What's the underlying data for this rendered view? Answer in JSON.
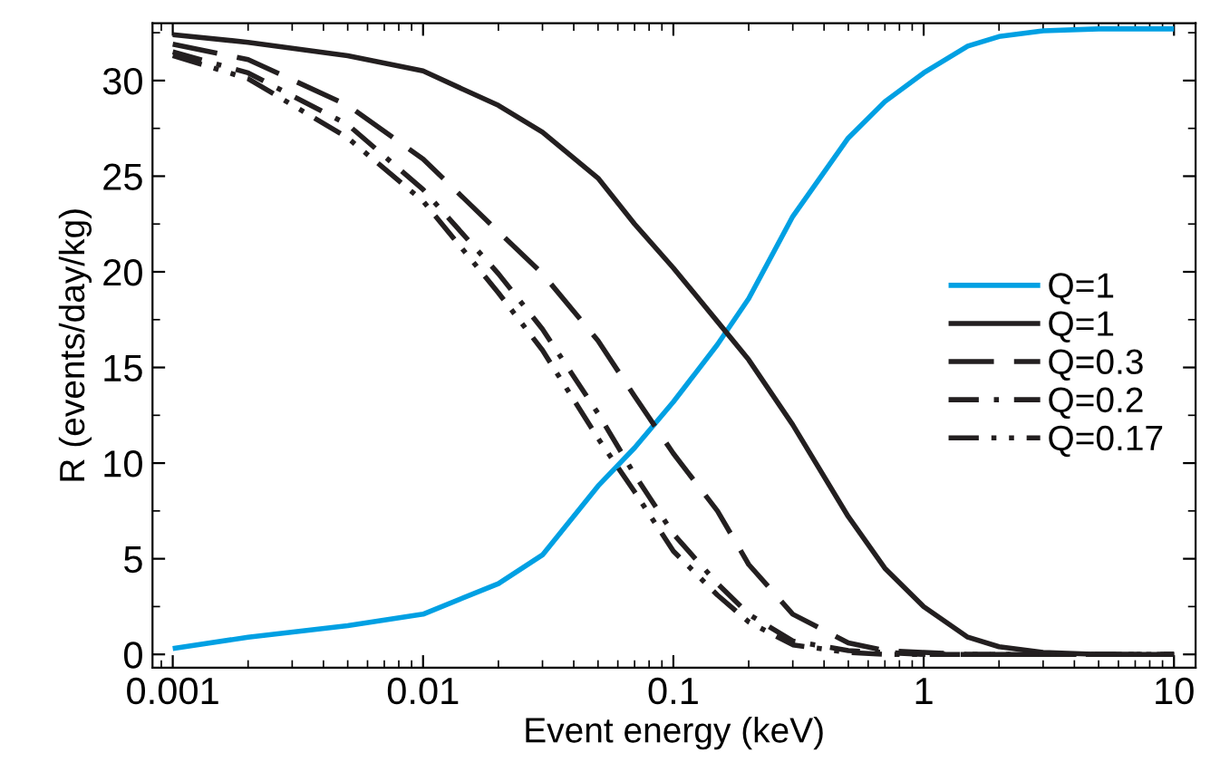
{
  "chart_data": {
    "type": "line",
    "xlabel": "Event energy (keV)",
    "ylabel": "R (events/day/kg)",
    "log": "x",
    "xlim": [
      0.00083,
      12.2
    ],
    "xticks": [
      {
        "value": 0.001,
        "label": "0.001"
      },
      {
        "value": 0.01,
        "label": "0.01"
      },
      {
        "value": 0.1,
        "label": "0.1"
      },
      1,
      10
    ],
    "ylim": [
      -0.7,
      33
    ],
    "yticks": [
      0,
      5,
      10,
      15,
      20,
      25,
      30
    ],
    "grid": false,
    "legend": "right",
    "marker": "none",
    "x": [
      0.001,
      0.002,
      0.005,
      0.01,
      0.02,
      0.03,
      0.05,
      0.07,
      0.1,
      0.15,
      0.2,
      0.3,
      0.5,
      0.7,
      1,
      1.5,
      2,
      3,
      5,
      10
    ],
    "series": [
      {
        "name": "Q=1",
        "color": "#00a0e3",
        "line_style": "solid",
        "values": [
          0.3,
          0.9,
          1.5,
          2.1,
          3.7,
          5.2,
          8.8,
          10.8,
          13.2,
          16.2,
          18.6,
          22.9,
          27,
          28.9,
          30.4,
          31.8,
          32.3,
          32.6,
          32.7,
          32.7
        ]
      },
      {
        "name": "Q=1",
        "color": "#231f20",
        "line_style": "solid",
        "values": [
          32.4,
          32.0,
          31.3,
          30.5,
          28.7,
          27.3,
          24.9,
          22.5,
          20.2,
          17.4,
          15.4,
          12,
          7.2,
          4.5,
          2.5,
          0.9,
          0.4,
          0.1,
          0,
          0
        ]
      },
      {
        "name": "Q=0.3",
        "color": "#231f20",
        "line_style": "dashed",
        "values": [
          31.9,
          31.1,
          28.7,
          25.9,
          22.1,
          19.9,
          16.4,
          13.5,
          10.5,
          7.5,
          4.7,
          2.1,
          0.6,
          0.2,
          0.1,
          0,
          0,
          0,
          0,
          0
        ]
      },
      {
        "name": "Q=0.2",
        "color": "#231f20",
        "line_style": "dashdot",
        "values": [
          31.5,
          30.4,
          27.7,
          24.3,
          19.9,
          17,
          12.6,
          9.4,
          6.3,
          3.7,
          2.1,
          0.7,
          0.2,
          0.1,
          0,
          0,
          0,
          0,
          0,
          0
        ]
      },
      {
        "name": "Q=0.17",
        "color": "#231f20",
        "line_style": "dashdotdot",
        "values": [
          31.3,
          30.1,
          27,
          23.7,
          18.9,
          15.9,
          11.3,
          8.5,
          5.4,
          3.1,
          1.7,
          0.5,
          0.1,
          0,
          0,
          0,
          0,
          0,
          0,
          0
        ]
      }
    ]
  }
}
